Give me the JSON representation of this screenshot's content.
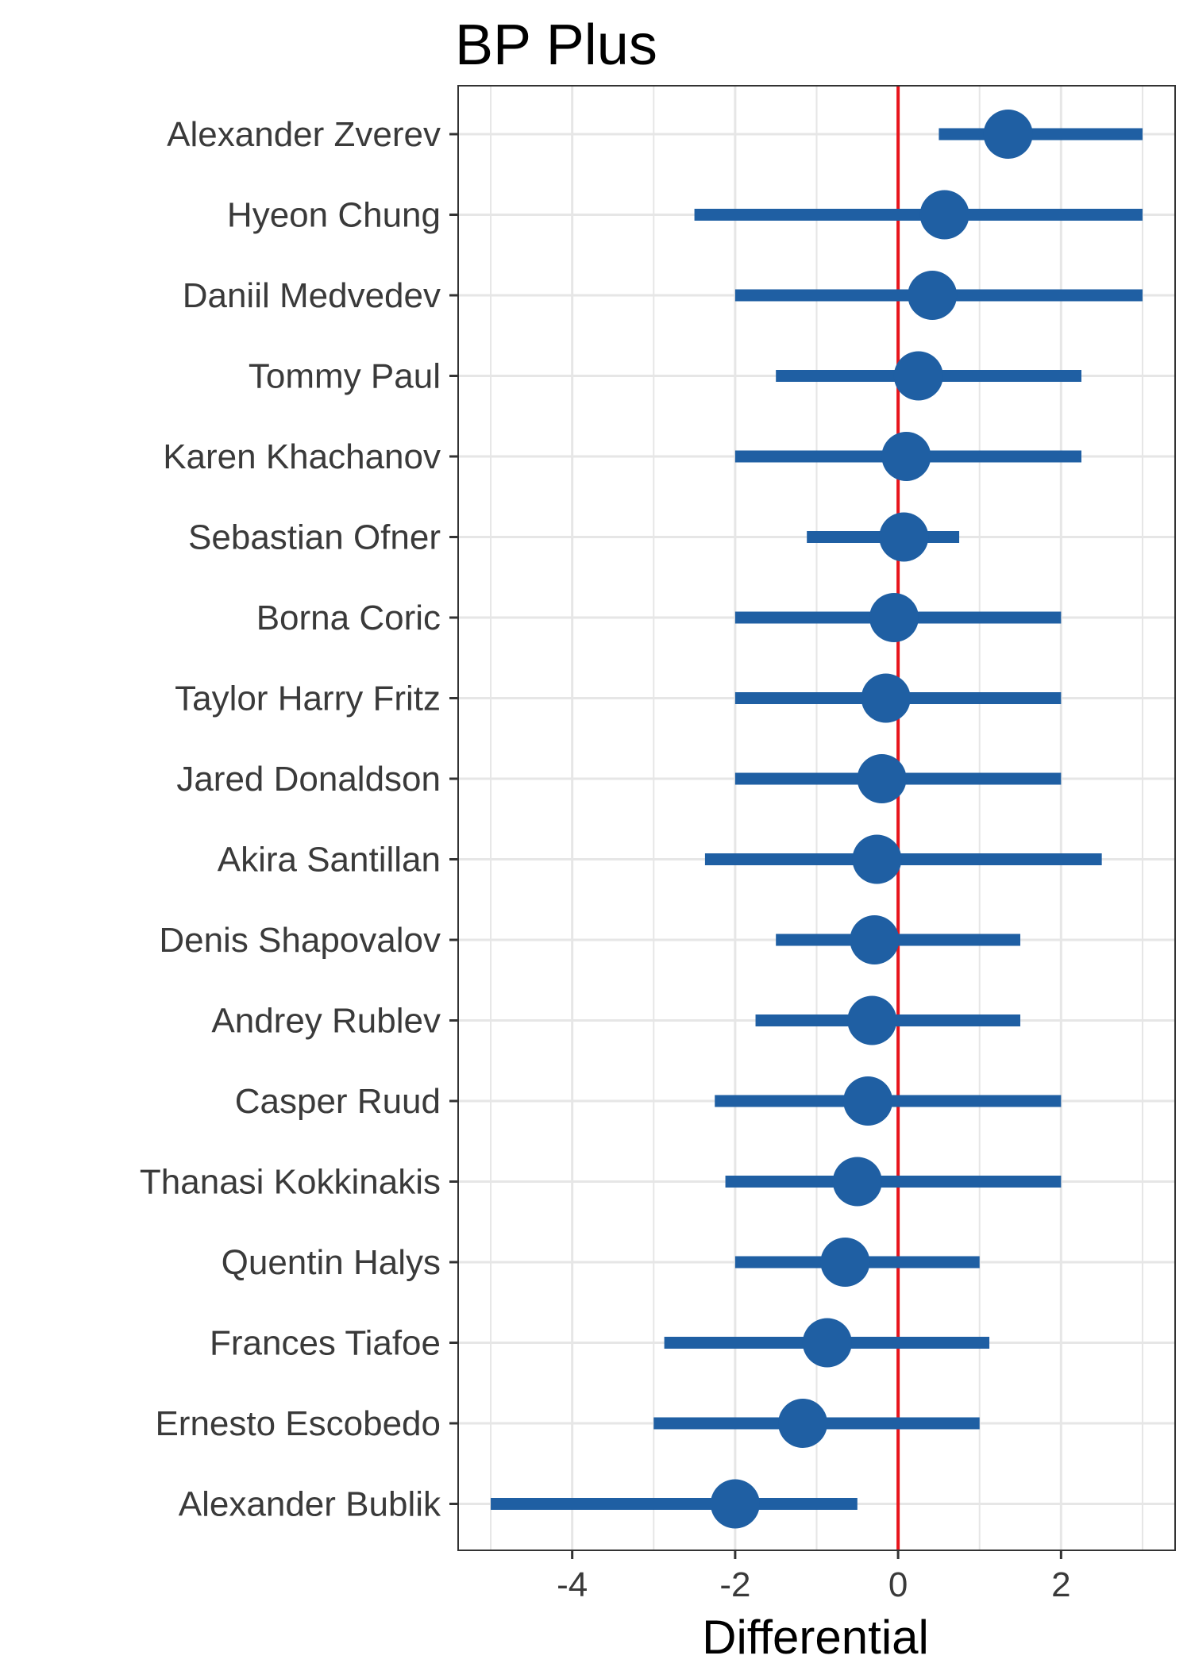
{
  "chart_data": {
    "type": "scatter",
    "title": "BP Plus",
    "xlabel": "Differential",
    "ylabel": "",
    "xlim": [
      -5.4,
      3.4
    ],
    "xticks": [
      -4,
      -2,
      0,
      2
    ],
    "xtick_labels": [
      "-4",
      "-2",
      "0",
      "2"
    ],
    "reference_line_x": 0,
    "grid": true,
    "colors": {
      "points": "#1f5fa3",
      "reference_line": "#e8141b",
      "grid": "#e6e6e6",
      "panel_border": "#333333"
    },
    "categories": [
      "Alexander Zverev",
      "Hyeon Chung",
      "Daniil Medvedev",
      "Tommy Paul",
      "Karen Khachanov",
      "Sebastian Ofner",
      "Borna Coric",
      "Taylor Harry Fritz",
      "Jared Donaldson",
      "Akira Santillan",
      "Denis Shapovalov",
      "Andrey Rublev",
      "Casper Ruud",
      "Thanasi Kokkinakis",
      "Quentin Halys",
      "Frances Tiafoe",
      "Ernesto Escobedo",
      "Alexander Bublik"
    ],
    "series": [
      {
        "values": [
          1.35,
          0.57,
          0.42,
          0.25,
          0.1,
          0.07,
          -0.05,
          -0.15,
          -0.2,
          -0.26,
          -0.29,
          -0.32,
          -0.37,
          -0.5,
          -0.65,
          -0.87,
          -1.17,
          -2.0
        ],
        "lower": [
          0.5,
          -2.5,
          -2.0,
          -1.5,
          -2.0,
          -1.12,
          -2.0,
          -2.0,
          -2.0,
          -2.37,
          -1.5,
          -1.75,
          -2.25,
          -2.12,
          -2.0,
          -2.87,
          -3.0,
          -5.0
        ],
        "upper": [
          3.0,
          3.0,
          3.0,
          2.25,
          2.25,
          0.75,
          2.0,
          2.0,
          2.0,
          2.5,
          1.5,
          1.5,
          2.0,
          2.0,
          1.0,
          1.12,
          1.0,
          -0.5
        ]
      }
    ]
  }
}
